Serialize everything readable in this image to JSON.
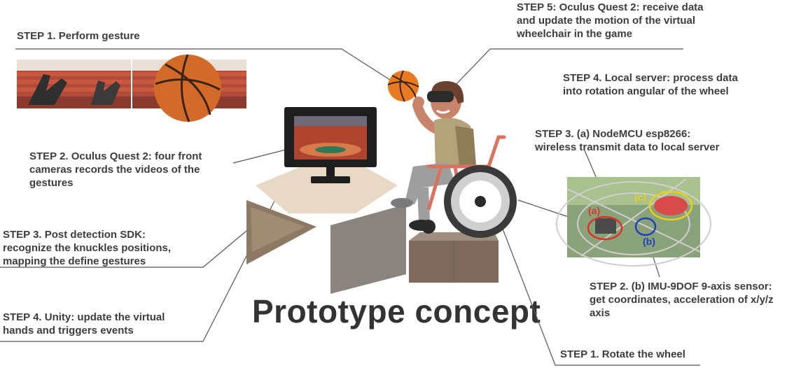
{
  "title": "Prototype concept",
  "left_steps": {
    "step1": "STEP 1. Perform gesture",
    "step2": "STEP 2. Oculus Quest 2: four front\ncameras records the videos of the\ngestures",
    "step3": "STEP 3. Post detection SDK:\nrecognize the knuckles positions,\nmapping the define gestures",
    "step4": "STEP 4. Unity: update the virtual\nhands and triggers events"
  },
  "right_steps": {
    "step5": "STEP 5: Oculus Quest 2: receive data\nand update the motion of the virtual\nwheelchair in the game",
    "step4": "STEP 4. Local server: process data\ninto rotation angular of the wheel",
    "step3a": "STEP 3. (a) NodeMCU esp8266:\nwireless transmit data to local server",
    "step2b": "STEP 2. (b) IMU-9DOF 9-axis sensor:\nget coordinates, acceleration of x/y/z\naxis",
    "step1": "STEP 1. Rotate the wheel"
  },
  "photo_labels": {
    "a": "(a)",
    "b": "(b)",
    "c": "(c)"
  },
  "colors": {
    "text": "#3d3d3d",
    "line": "#555555",
    "label_a": "#d9342b",
    "label_b": "#1f3fc4",
    "label_c": "#e6d21a",
    "skin": "#c8846a",
    "wheel_frame": "#d9735f",
    "basketball": "#e87a23"
  }
}
